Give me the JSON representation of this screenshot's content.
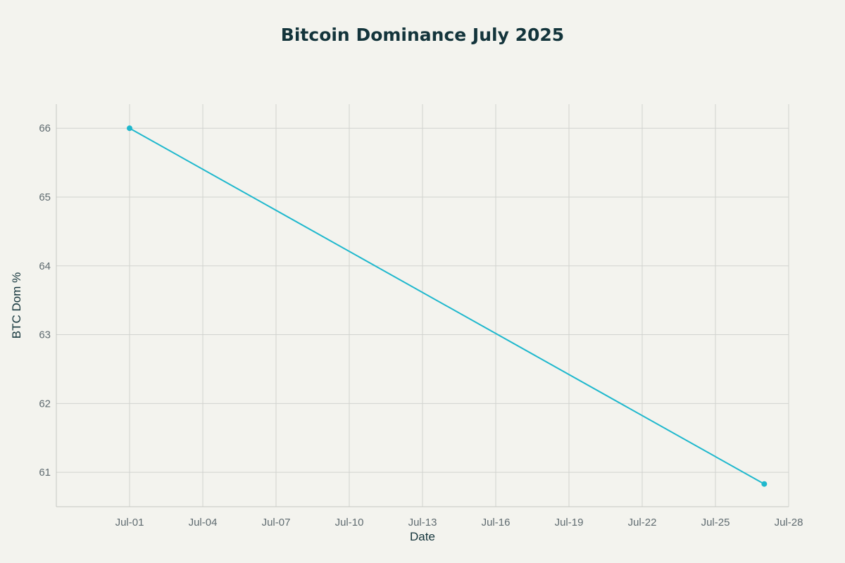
{
  "chart_data": {
    "type": "line",
    "title": "Bitcoin Dominance July 2025",
    "xlabel": "Date",
    "ylabel": "BTC Dom %",
    "x_tick_labels": [
      "Jul-01",
      "Jul-04",
      "Jul-07",
      "Jul-10",
      "Jul-13",
      "Jul-16",
      "Jul-19",
      "Jul-22",
      "Jul-25",
      "Jul-28"
    ],
    "x_tick_dates": [
      "2025-07-01",
      "2025-07-04",
      "2025-07-07",
      "2025-07-10",
      "2025-07-13",
      "2025-07-16",
      "2025-07-19",
      "2025-07-22",
      "2025-07-25",
      "2025-07-28"
    ],
    "y_ticks": [
      61,
      62,
      63,
      64,
      65,
      66
    ],
    "xlim": [
      "2025-06-28",
      "2025-07-28"
    ],
    "ylim": [
      60.5,
      66.35
    ],
    "grid": true,
    "series": [
      {
        "color": "#1fb8cd",
        "points": [
          {
            "x": "2025-07-01",
            "y": 66.0
          },
          {
            "x": "2025-07-27",
            "y": 60.83
          }
        ]
      }
    ]
  }
}
